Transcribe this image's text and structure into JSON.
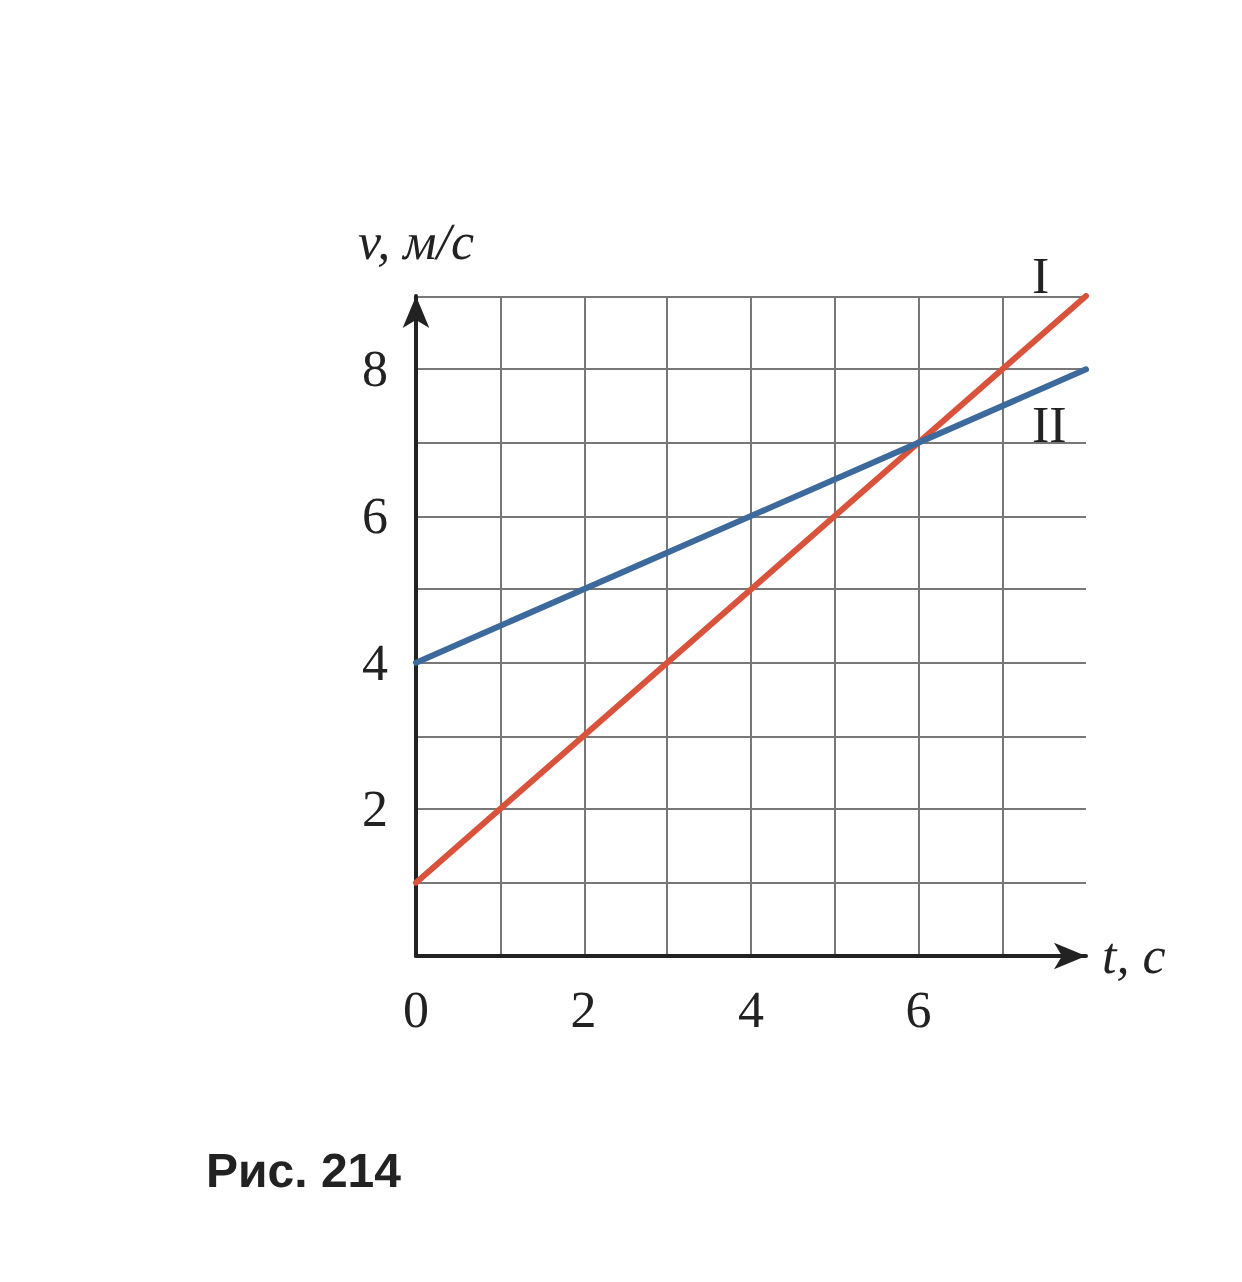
{
  "chart_data": {
    "type": "line",
    "xlabel": "t, с",
    "ylabel": "v, м/с",
    "annotations": [
      "Рис. 214"
    ],
    "x": [
      0,
      8
    ],
    "series": [
      {
        "name": "I",
        "color": "#d9533c",
        "values": [
          1,
          9
        ]
      },
      {
        "name": "II",
        "color": "#3d6a9c",
        "values": [
          4,
          8
        ]
      }
    ],
    "xlim": [
      0,
      8
    ],
    "ylim": [
      0,
      9
    ],
    "xticks": [
      0,
      {
        "value": 1,
        "label": null
      },
      2,
      {
        "value": 3,
        "label": null
      },
      4,
      {
        "value": 5,
        "label": null
      },
      6,
      {
        "value": 7,
        "label": null
      }
    ],
    "yticks": [
      {
        "value": 1,
        "label": null
      },
      2,
      {
        "value": 3,
        "label": null
      },
      4,
      {
        "value": 5,
        "label": null
      },
      6,
      {
        "value": 7,
        "label": null
      },
      8,
      {
        "value": 9,
        "label": null
      }
    ],
    "grid": true,
    "marker": "none",
    "line_style": "solid"
  }
}
